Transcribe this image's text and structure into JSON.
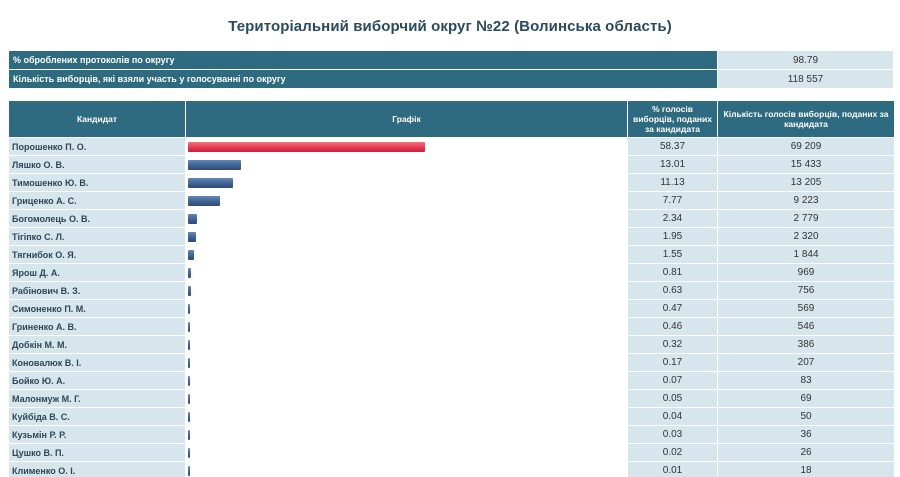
{
  "title": "Територіальний виборчий округ №22 (Волинська область)",
  "summary": [
    {
      "label": "% оброблених протоколів по округу",
      "value": "98.79"
    },
    {
      "label": "Кількість виборців, які взяли участь у голосуванні по округу",
      "value": "118 557"
    }
  ],
  "table": {
    "headers": {
      "candidate": "Кандидат",
      "graph": "Графік",
      "percent": "% голосів виборців, поданих за кандидата",
      "votes": "Кількість голосів виборців, поданих за кандидата"
    },
    "rows": [
      {
        "name": "Порошенко П. О.",
        "percent": "58.37",
        "votes": "69 209",
        "share": 58.37
      },
      {
        "name": "Ляшко О. В.",
        "percent": "13.01",
        "votes": "15 433",
        "share": 13.01
      },
      {
        "name": "Тимошенко Ю. В.",
        "percent": "11.13",
        "votes": "13 205",
        "share": 11.13
      },
      {
        "name": "Гриценко А. С.",
        "percent": "7.77",
        "votes": "9 223",
        "share": 7.77
      },
      {
        "name": "Богомолець О. В.",
        "percent": "2.34",
        "votes": "2 779",
        "share": 2.34
      },
      {
        "name": "Тігіпко С. Л.",
        "percent": "1.95",
        "votes": "2 320",
        "share": 1.95
      },
      {
        "name": "Тягнибок О. Я.",
        "percent": "1.55",
        "votes": "1 844",
        "share": 1.55
      },
      {
        "name": "Ярош Д. А.",
        "percent": "0.81",
        "votes": "969",
        "share": 0.81
      },
      {
        "name": "Рабінович В. З.",
        "percent": "0.63",
        "votes": "756",
        "share": 0.63
      },
      {
        "name": "Симоненко П. М.",
        "percent": "0.47",
        "votes": "569",
        "share": 0.47
      },
      {
        "name": "Гриненко А. В.",
        "percent": "0.46",
        "votes": "546",
        "share": 0.46
      },
      {
        "name": "Добкін М. М.",
        "percent": "0.32",
        "votes": "386",
        "share": 0.32
      },
      {
        "name": "Коновалюк В. І.",
        "percent": "0.17",
        "votes": "207",
        "share": 0.17
      },
      {
        "name": "Бойко Ю. А.",
        "percent": "0.07",
        "votes": "83",
        "share": 0.07
      },
      {
        "name": "Малонмуж М. Г.",
        "percent": "0.05",
        "votes": "69",
        "share": 0.05
      },
      {
        "name": "Куйбіда В. С.",
        "percent": "0.04",
        "votes": "50",
        "share": 0.04
      },
      {
        "name": "Кузьмін Р. Р.",
        "percent": "0.03",
        "votes": "36",
        "share": 0.03
      },
      {
        "name": "Цушко В. П.",
        "percent": "0.02",
        "votes": "26",
        "share": 0.02
      },
      {
        "name": "Клименко О. І.",
        "percent": "0.01",
        "votes": "18",
        "share": 0.01
      }
    ]
  },
  "colors": {
    "header_bg": "#2e6a80",
    "cell_bg": "#d6e6ec",
    "lead_bar": "#e3364f",
    "bar": "#3e5f8e"
  }
}
